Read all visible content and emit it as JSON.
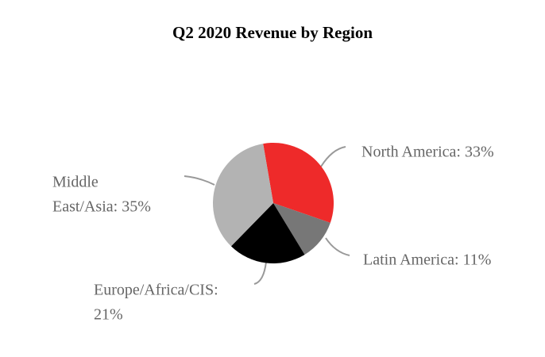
{
  "chart_data": {
    "type": "pie",
    "title": "Q2 2020 Revenue by Region",
    "values": [
      33,
      11,
      21,
      35
    ],
    "labels": [
      [
        "North America: 33%"
      ],
      [
        "Latin America: 11%"
      ],
      [
        "Europe/Africa/CIS:",
        "21%"
      ],
      [
        "Middle",
        "East/Asia: 35%"
      ]
    ],
    "colors": [
      "#ee2a2a",
      "#777777",
      "#000000",
      "#b3b3b3"
    ]
  }
}
